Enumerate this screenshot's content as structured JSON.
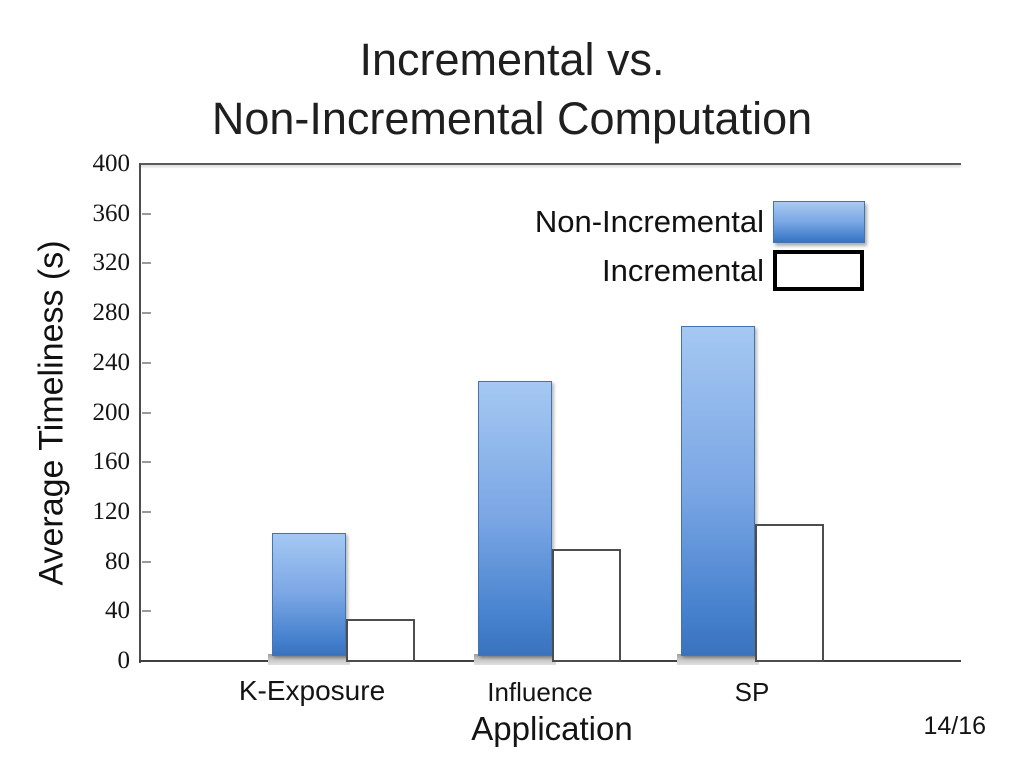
{
  "slide": {
    "title_line1": "Incremental vs.",
    "title_line2": "Non-Incremental Computation",
    "page_indicator": "14/16"
  },
  "legend": {
    "items": [
      {
        "label": "Non-Incremental",
        "swatch": "blue-gradient-bar"
      },
      {
        "label": "Incremental",
        "swatch": "white-outlined-bar"
      }
    ]
  },
  "colors": {
    "bar_blue_top": "#a5c8f2",
    "bar_blue_bottom": "#3a72bd",
    "bar_blue_border": "#4473ae",
    "bar_white_fill": "#ffffff",
    "bar_white_border": "#4d4d4d",
    "axis_line": "#404040",
    "bar_shadow_gray": "#9e9e9e",
    "text": "#1f1f1f"
  },
  "chart_data": {
    "type": "bar",
    "title": "Incremental vs. Non-Incremental Computation",
    "categories": [
      "K-Exposure",
      "Influence",
      "SP"
    ],
    "series": [
      {
        "name": "Non-Incremental",
        "values": [
          103,
          225,
          270
        ]
      },
      {
        "name": "Incremental",
        "values": [
          34,
          90,
          110
        ]
      }
    ],
    "xlabel": "Application",
    "ylabel": "Average Timeliness (s)",
    "ylim": [
      0,
      400
    ],
    "ytick_step": 40,
    "yticks": [
      0,
      40,
      80,
      120,
      160,
      200,
      240,
      280,
      320,
      360,
      400
    ],
    "grid": false,
    "legend_position": "top-right-inside"
  }
}
